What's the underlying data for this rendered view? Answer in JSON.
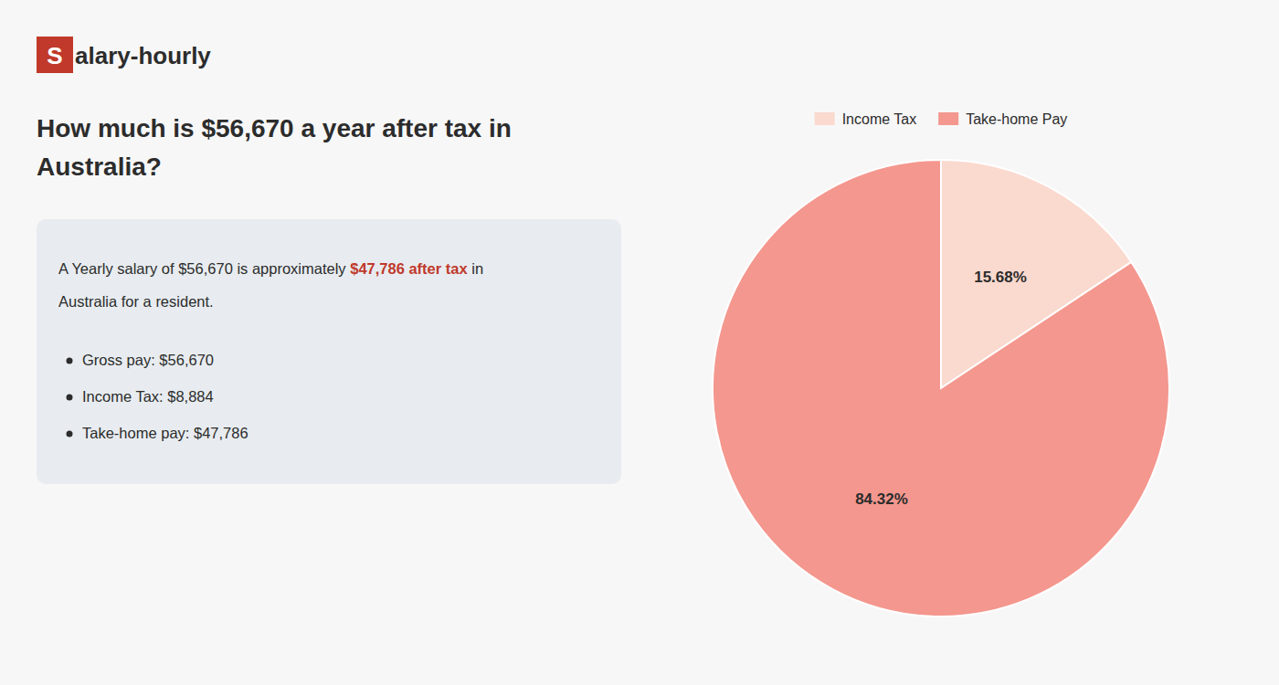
{
  "chart_data": {
    "type": "pie",
    "title": [
      "How much is $56,670 a year after tax in",
      "Australia?"
    ],
    "annotations": [
      {
        "text": "S",
        "color": "#c0392b"
      },
      {
        "text": "alary-hourly",
        "color": "#2c2c2c"
      },
      {
        "text": "A Yearly salary of $56,670 is approximately ",
        "color": "#2c2c2c"
      },
      {
        "text": "$47,786 after tax",
        "color": "#c0392b"
      },
      {
        "text": " in",
        "color": "#2c2c2c"
      },
      {
        "text": "Australia for a resident.",
        "color": "#2c2c2c"
      },
      {
        "text": "Gross pay: $56,670",
        "color": "#2c2c2c"
      },
      {
        "text": "Income Tax: $8,884",
        "color": "#2c2c2c"
      },
      {
        "text": "Take-home pay: $47,786",
        "color": "#2c2c2c"
      }
    ],
    "categories": [
      "Income Tax",
      "Take-home Pay"
    ],
    "values": [
      15.68,
      84.32
    ],
    "value_labels": [
      "15.68%",
      "84.32%"
    ],
    "colors": [
      "#fad9ce",
      "#f4978e"
    ],
    "data_labels": true,
    "legend": "top"
  }
}
